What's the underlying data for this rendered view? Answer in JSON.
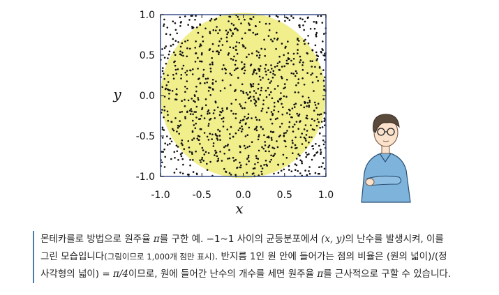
{
  "chart_data": {
    "type": "scatter",
    "title": "",
    "xlabel": "x",
    "ylabel": "y",
    "xlim": [
      -1.0,
      1.0
    ],
    "ylim": [
      -1.0,
      1.0
    ],
    "xticks": [
      "-1.0",
      "-0.5",
      "0.0",
      "0.5",
      "1.0"
    ],
    "yticks": [
      "1.0",
      "0.5",
      "0.0",
      "-0.5",
      "-1.0"
    ],
    "grid": false,
    "legend": "none",
    "circle": {
      "cx": 0.0,
      "cy": 0.0,
      "r": 1.0
    },
    "points_count": 1000,
    "points_distribution": "uniform in [-1,1] x [-1,1]",
    "colors": {
      "points": "#111111",
      "circle_fill": "#f1ee8c",
      "frame": "#3b4f8c"
    }
  },
  "caption": {
    "line1_a": "몬테카를로 방법으로 원주율 ",
    "pi": "π",
    "line1_b": "를 구한 예. −1∼1 사이의 균등분포에서 ",
    "xy": "(x, y)",
    "line1_c": "의 난수를 발생시켜, 이를",
    "line2_a": "그린 모습입니다",
    "line2_small": "(그림이므로 1,000개 점만 표시)",
    "line2_b": ". 반지름 1인 원 안에 들어가는 점의 비율은 (원의 넓이)/(정",
    "line3_a": "사각형의 넓이) = ",
    "line3_pi4": "π/4",
    "line3_b": "이므로, 원에 들어간 난수의 개수를 세면 원주율 ",
    "line3_c": "를 근사적으로 구할 수 있습니다."
  }
}
